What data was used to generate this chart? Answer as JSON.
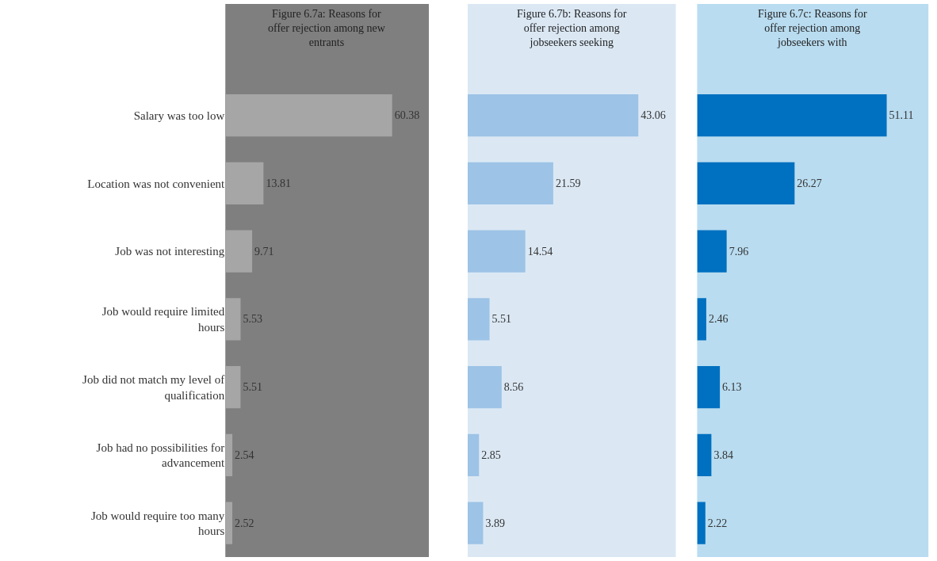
{
  "chart_data": [
    {
      "type": "bar",
      "orientation": "horizontal",
      "title": "Figure 6.7a: Reasons for offer rejection among new entrants",
      "categories": [
        "Salary was too low",
        "Location was not convenient",
        "Job was not interesting",
        "Job would require limited hours",
        "Job did not match my level of qualification",
        "Job had no possibilities for advancement",
        "Job would require too many hours"
      ],
      "values": [
        60.38,
        13.81,
        9.71,
        5.53,
        5.51,
        2.54,
        2.52
      ],
      "color": "#a6a6a6",
      "data_labels": true,
      "tick_labels": "y"
    },
    {
      "type": "bar",
      "orientation": "horizontal",
      "title": "Figure 6.7b: Reasons for offer rejection among jobseekers seeking",
      "categories": [
        null,
        null,
        null,
        null,
        null,
        null,
        null
      ],
      "values": [
        43.06,
        21.59,
        14.54,
        5.51,
        8.56,
        2.85,
        3.89
      ],
      "color": "#9dc3e6",
      "data_labels": true,
      "tick_labels": false
    },
    {
      "type": "bar",
      "orientation": "horizontal",
      "title": "Figure 6.7c: Reasons for offer rejection among jobseekers with",
      "categories": [
        null,
        null,
        null,
        null,
        null,
        null,
        null
      ],
      "values": [
        51.11,
        26.27,
        7.96,
        2.46,
        6.13,
        3.84,
        2.22
      ],
      "color": "#0070c0",
      "data_labels": true,
      "tick_labels": false
    }
  ]
}
